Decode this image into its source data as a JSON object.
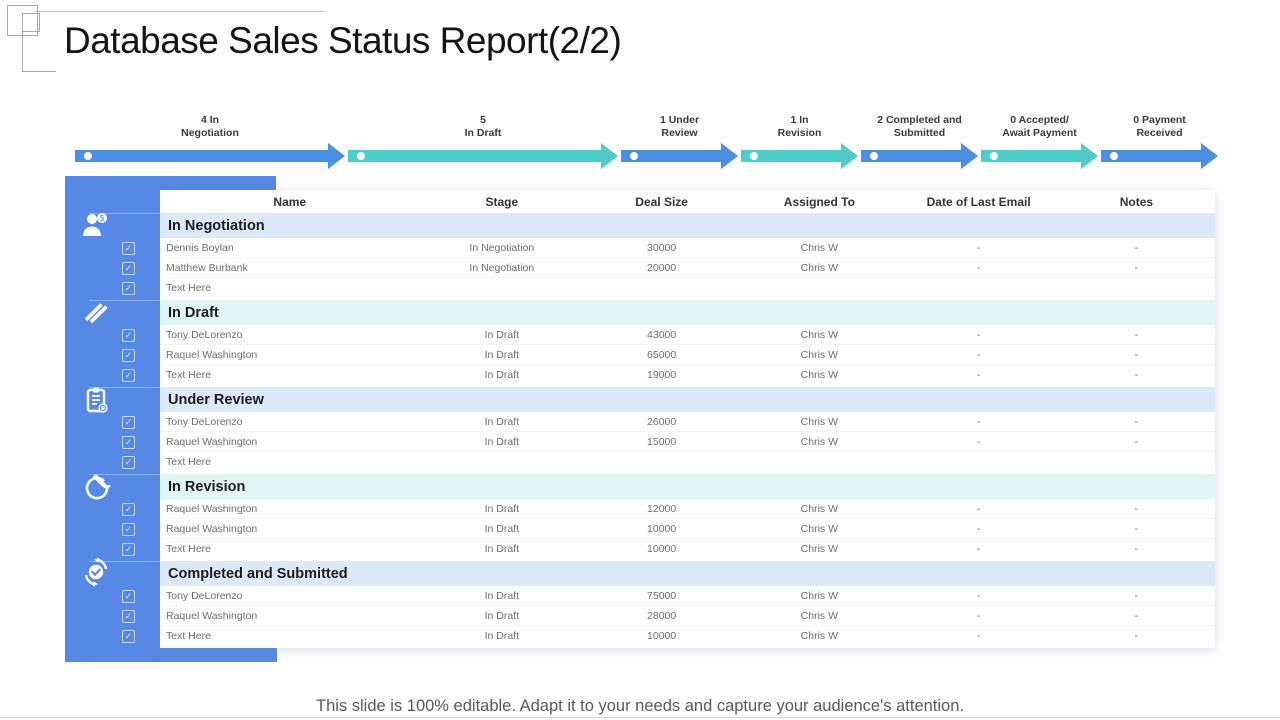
{
  "slide": {
    "title": "Database Sales Status Report(2/2)",
    "footer": "This slide is 100% editable. Adapt it to your needs and capture your audience's attention."
  },
  "colors": {
    "arrow_blue": "#4A90E2",
    "arrow_teal": "#4DCDC9",
    "sidebar_blue": "#5689E5",
    "band_blue": "#DCE9F8",
    "band_teal": "#E2F5F5"
  },
  "pipeline": {
    "stages": [
      {
        "line1": "4 In",
        "line2": "Negotiation",
        "tone": "blue",
        "wide": true
      },
      {
        "line1": "5",
        "line2": "In Draft",
        "tone": "teal",
        "wide": true
      },
      {
        "line1": "1 Under",
        "line2": "Review",
        "tone": "blue",
        "wide": false
      },
      {
        "line1": "1 In",
        "line2": "Revision",
        "tone": "teal",
        "wide": false
      },
      {
        "line1": "2 Completed and",
        "line2": "Submitted",
        "tone": "blue",
        "wide": false
      },
      {
        "line1": "0 Accepted/",
        "line2": "Await Payment",
        "tone": "teal",
        "wide": false
      },
      {
        "line1": "0 Payment",
        "line2": "Received",
        "tone": "blue",
        "wide": false
      }
    ]
  },
  "sidebar": {
    "icons": [
      {
        "name": "salesperson-dollar-icon"
      },
      {
        "name": "draft-pencils-icon"
      },
      {
        "name": "review-clipboard-clock-icon"
      },
      {
        "name": "revision-pencil-cycle-icon"
      },
      {
        "name": "completed-check-cycle-icon"
      }
    ],
    "checkbox_glyph": "✓"
  },
  "table": {
    "columns": [
      "Name",
      "Stage",
      "Deal Size",
      "Assigned To",
      "Date of Last Email",
      "Notes"
    ],
    "sections": [
      {
        "title": "In Negotiation",
        "tone": "blue",
        "rows": [
          {
            "name": "Dennis Boylan",
            "stage": "In Negotiation",
            "deal": "30000",
            "assigned": "Chris W",
            "date": "-",
            "notes": "-"
          },
          {
            "name": "Matthew Burbank",
            "stage": "In Negotiation",
            "deal": "20000",
            "assigned": "Chris W",
            "date": "-",
            "notes": "-"
          },
          {
            "name": "Text Here",
            "stage": "",
            "deal": "",
            "assigned": "",
            "date": "",
            "notes": ""
          }
        ]
      },
      {
        "title": "In Draft",
        "tone": "teal",
        "rows": [
          {
            "name": "Tony DeLorenzo",
            "stage": "In Draft",
            "deal": "43000",
            "assigned": "Chris W",
            "date": "-",
            "notes": "-"
          },
          {
            "name": "Raquel Washington",
            "stage": "In Draft",
            "deal": "65000",
            "assigned": "Chris W",
            "date": "-",
            "notes": "-"
          },
          {
            "name": "Text Here",
            "stage": "In Draft",
            "deal": "19000",
            "assigned": "Chris W",
            "date": "-",
            "notes": "-"
          }
        ]
      },
      {
        "title": "Under Review",
        "tone": "blue",
        "rows": [
          {
            "name": "Tony DeLorenzo",
            "stage": "In Draft",
            "deal": "26000",
            "assigned": "Chris W",
            "date": "-",
            "notes": "-"
          },
          {
            "name": "Raquel Washington",
            "stage": "In Draft",
            "deal": "15000",
            "assigned": "Chris W",
            "date": "-",
            "notes": "-"
          },
          {
            "name": "Text Here",
            "stage": "",
            "deal": "",
            "assigned": "",
            "date": "",
            "notes": ""
          }
        ]
      },
      {
        "title": "In Revision",
        "tone": "teal",
        "rows": [
          {
            "name": "Raquel Washington",
            "stage": "In Draft",
            "deal": "12000",
            "assigned": "Chris W",
            "date": "-",
            "notes": "-"
          },
          {
            "name": "Raquel Washington",
            "stage": "In Draft",
            "deal": "10000",
            "assigned": "Chris W",
            "date": "-",
            "notes": "-"
          },
          {
            "name": "Text Here",
            "stage": "In Draft",
            "deal": "10000",
            "assigned": "Chris W",
            "date": "-",
            "notes": "-"
          }
        ]
      },
      {
        "title": "Completed and Submitted",
        "tone": "blue",
        "rows": [
          {
            "name": "Tony DeLorenzo",
            "stage": "In Draft",
            "deal": "75000",
            "assigned": "Chris W",
            "date": "-",
            "notes": "-"
          },
          {
            "name": "Raquel Washington",
            "stage": "In Draft",
            "deal": "28000",
            "assigned": "Chris W",
            "date": "-",
            "notes": "-"
          },
          {
            "name": "Text Here",
            "stage": "In Draft",
            "deal": "10000",
            "assigned": "Chris W",
            "date": "-",
            "notes": "-"
          }
        ]
      }
    ]
  }
}
